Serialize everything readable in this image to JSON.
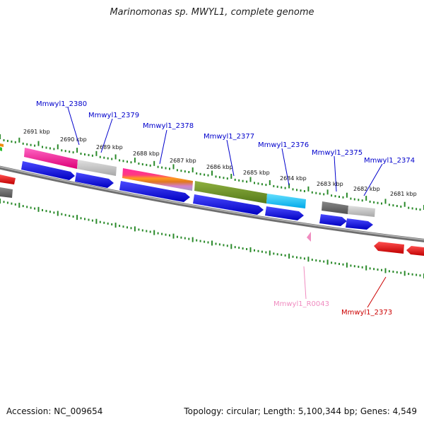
{
  "title": "Marinomonas sp. MWYL1, complete genome",
  "accession": "Accession: NC_009654",
  "summary": "Topology: circular; Length: 5,100,344 bp; Genes: 4,549",
  "colors": {
    "gene_label": "#0000cc",
    "rna_label": "#f08cc0",
    "red_label": "#cc0000",
    "forward_gene": "#0000ee",
    "reverse_gene": "#ee0000",
    "backbone": "#808080",
    "ticks": "#2a8a2a"
  },
  "scale_labels": [
    "2691 kbp",
    "2690 kbp",
    "2689 kbp",
    "2688 kbp",
    "2687 kbp",
    "2686 kbp",
    "2685 kbp",
    "2684 kbp",
    "2683 kbp",
    "2682 kbp",
    "2681 kbp"
  ],
  "gene_labels": [
    "Mmwyl1_2380",
    "Mmwyl1_2379",
    "Mmwyl1_2378",
    "Mmwyl1_2377",
    "Mmwyl1_2376",
    "Mmwyl1_2375",
    "Mmwyl1_2374"
  ],
  "lower_labels": [
    "Mmwyl1_R0043",
    "Mmwyl1_2373"
  ]
}
